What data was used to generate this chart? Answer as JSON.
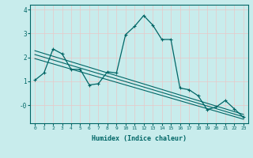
{
  "xlabel": "Humidex (Indice chaleur)",
  "bg_color": "#c8ecec",
  "grid_color": "#d0e8e8",
  "line_color": "#006666",
  "xlim": [
    -0.5,
    23.5
  ],
  "ylim": [
    -0.75,
    4.2
  ],
  "xticks": [
    0,
    1,
    2,
    3,
    4,
    5,
    6,
    7,
    8,
    9,
    10,
    11,
    12,
    13,
    14,
    15,
    16,
    17,
    18,
    19,
    20,
    21,
    22,
    23
  ],
  "yticks": [
    0,
    1,
    2,
    3,
    4
  ],
  "ytick_labels": [
    "-0",
    "1",
    "2",
    "3",
    "4"
  ],
  "main_line_x": [
    0,
    1,
    2,
    3,
    4,
    5,
    6,
    7,
    8,
    9,
    10,
    11,
    12,
    13,
    14,
    15,
    16,
    17,
    18,
    19,
    20,
    21,
    22,
    23
  ],
  "main_line_y": [
    1.05,
    1.35,
    2.35,
    2.15,
    1.5,
    1.5,
    0.85,
    0.9,
    1.4,
    1.35,
    2.95,
    3.3,
    3.75,
    3.35,
    2.75,
    2.75,
    0.72,
    0.65,
    0.4,
    -0.18,
    -0.07,
    0.2,
    -0.15,
    -0.5
  ],
  "trend_line1_x": [
    0,
    23
  ],
  "trend_line1_y": [
    2.28,
    -0.38
  ],
  "trend_line2_x": [
    0,
    23
  ],
  "trend_line2_y": [
    2.12,
    -0.48
  ],
  "trend_line3_x": [
    0,
    23
  ],
  "trend_line3_y": [
    1.95,
    -0.58
  ]
}
